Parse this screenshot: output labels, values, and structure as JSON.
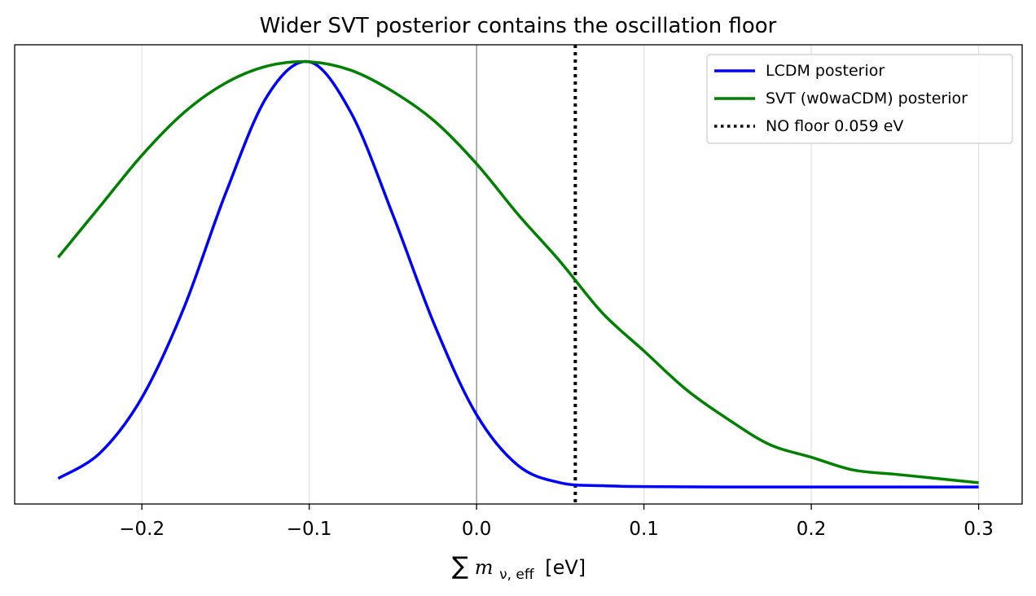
{
  "chart_data": {
    "type": "line",
    "title": "Wider SVT posterior contains the oscillation floor",
    "xlabel": {
      "sum": "∑",
      "var": "m",
      "sub": "ν, eff",
      "unit": "[eV]"
    },
    "ylabel": "",
    "xlim": [
      -0.276,
      0.326
    ],
    "ylim": [
      -0.04,
      1.04
    ],
    "x_ticks": [
      -0.2,
      -0.1,
      0.0,
      0.1,
      0.2,
      0.3
    ],
    "x_tick_labels": [
      "−0.2",
      "−0.1",
      "0.0",
      "0.1",
      "0.2",
      "0.3"
    ],
    "y_ticks_shown": false,
    "grid": "vertical",
    "legend_position": "top-right",
    "series": [
      {
        "name": "LCDM posterior",
        "color": "#0000ff",
        "style": "solid",
        "x": [
          -0.25,
          -0.225,
          -0.2,
          -0.175,
          -0.15,
          -0.125,
          -0.1,
          -0.075,
          -0.05,
          -0.025,
          0.0,
          0.025,
          0.05,
          0.075,
          0.1,
          0.15,
          0.2,
          0.25,
          0.3
        ],
        "y": [
          0.02,
          0.08,
          0.21,
          0.42,
          0.69,
          0.92,
          1.0,
          0.88,
          0.64,
          0.38,
          0.17,
          0.05,
          0.01,
          0.003,
          0.001,
          0.0,
          0.0,
          0.0,
          0.0
        ]
      },
      {
        "name": "SVT (w0waCDM) posterior",
        "color": "#008000",
        "style": "solid",
        "x": [
          -0.25,
          -0.225,
          -0.2,
          -0.175,
          -0.15,
          -0.125,
          -0.1,
          -0.075,
          -0.05,
          -0.025,
          0.0,
          0.025,
          0.05,
          0.075,
          0.1,
          0.125,
          0.15,
          0.175,
          0.2,
          0.225,
          0.25,
          0.275,
          0.3
        ],
        "y": [
          0.54,
          0.66,
          0.78,
          0.88,
          0.95,
          0.99,
          1.0,
          0.98,
          0.93,
          0.86,
          0.76,
          0.64,
          0.53,
          0.41,
          0.32,
          0.23,
          0.16,
          0.1,
          0.07,
          0.04,
          0.03,
          0.02,
          0.01
        ]
      }
    ],
    "vlines": [
      {
        "name": "NO floor 0.059 eV",
        "x": 0.059,
        "color": "#000000",
        "style": "dotted"
      },
      {
        "x": 0.0,
        "color": "#808080",
        "style": "solid",
        "in_legend": false
      }
    ]
  }
}
